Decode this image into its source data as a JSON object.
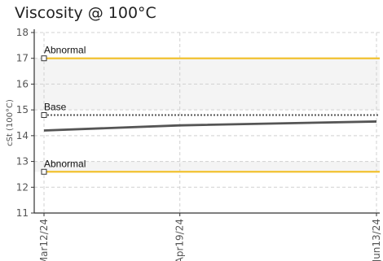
{
  "chart_data": {
    "type": "line",
    "title": "Viscosity @ 100°C",
    "ylabel": "cSt (100°C)",
    "xlabel": "",
    "ylim": [
      11,
      18
    ],
    "yticks": [
      11,
      12,
      13,
      14,
      15,
      16,
      17,
      18
    ],
    "categories": [
      "Mar12/24",
      "Apr19/24",
      "Jun13/24"
    ],
    "x_dates": [
      "2024-03-12",
      "2024-04-19",
      "2024-06-13"
    ],
    "grid": true,
    "series": [
      {
        "values": [
          14.2,
          14.4,
          14.55
        ],
        "color": "#555555",
        "style": "solid"
      }
    ],
    "reference_lines": [
      {
        "label": "Abnormal",
        "value": 17.0,
        "color": "#f2c230",
        "style": "solid"
      },
      {
        "label": "Base",
        "value": 14.8,
        "color": "#555555",
        "style": "dotted"
      },
      {
        "label": "Abnormal",
        "value": 12.6,
        "color": "#f2c230",
        "style": "solid"
      }
    ],
    "bands": [
      {
        "from": 15.0,
        "to": 17.0,
        "color": "#f4f4f4"
      },
      {
        "from": 12.6,
        "to": 13.0,
        "color": "#f4f4f4"
      }
    ]
  }
}
